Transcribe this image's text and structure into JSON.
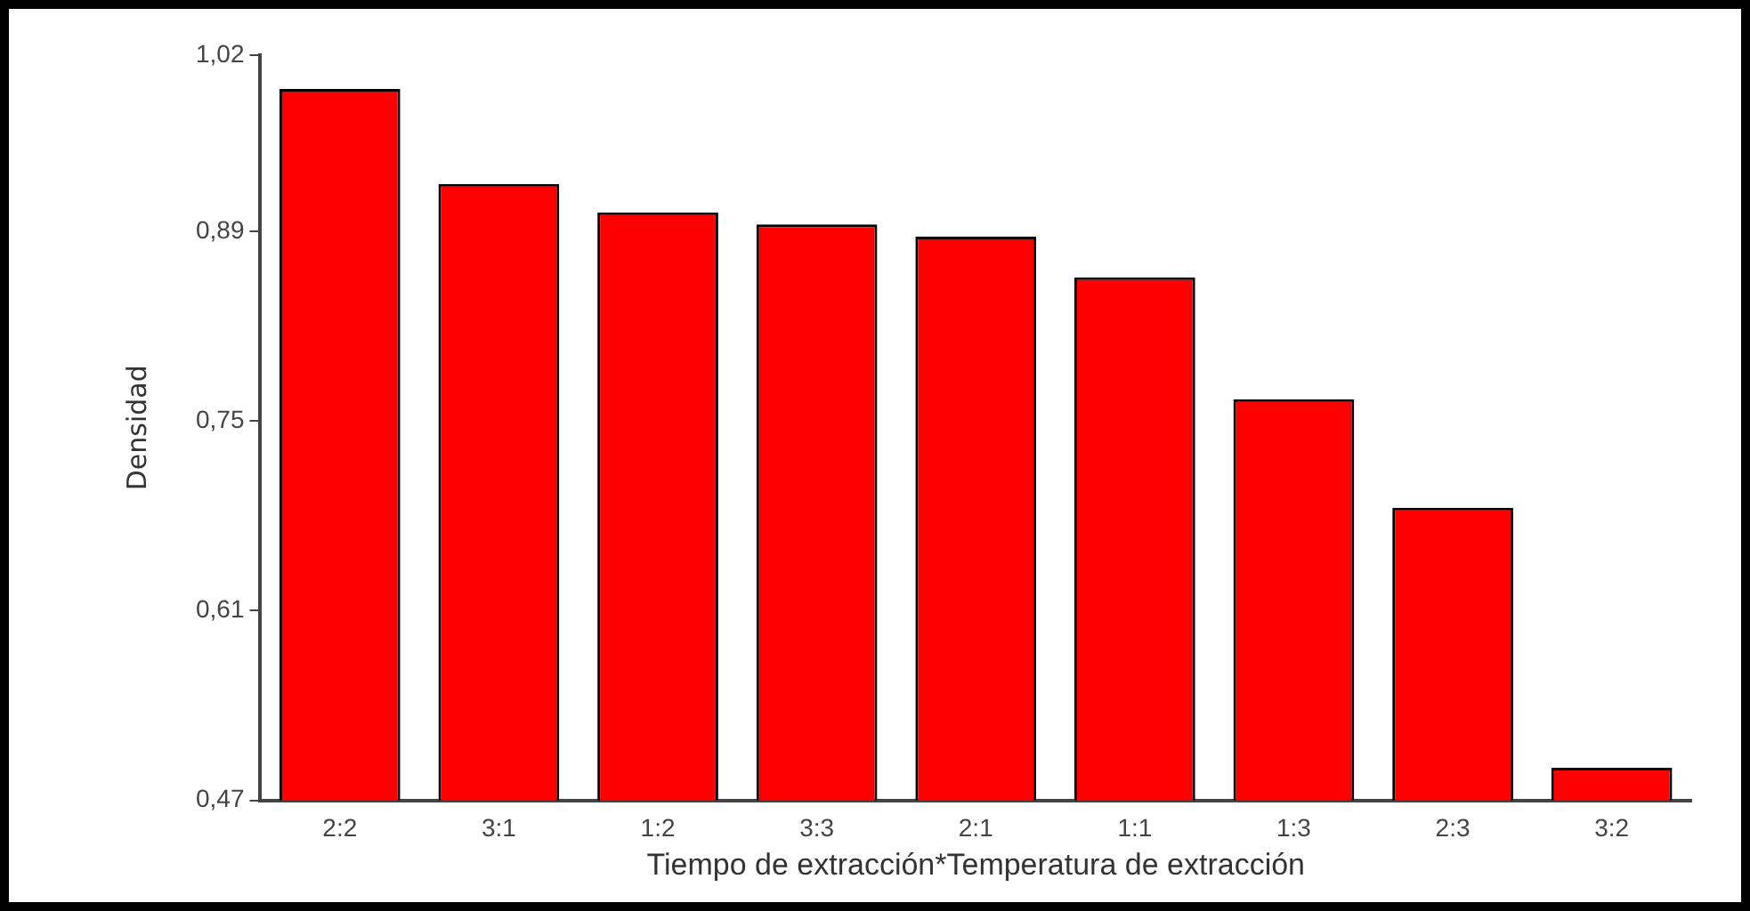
{
  "chart_data": {
    "type": "bar",
    "xlabel": "Tiempo de extracción*Temperatura de extracción",
    "ylabel": "Densidad",
    "categories": [
      "2:2",
      "3:1",
      "1:2",
      "3:3",
      "2:1",
      "1:1",
      "1:3",
      "2:3",
      "3:2"
    ],
    "values": [
      0.995,
      0.925,
      0.904,
      0.895,
      0.886,
      0.856,
      0.766,
      0.686,
      0.494
    ],
    "color": "#ff0000",
    "ylim": [
      0.47,
      1.02
    ],
    "yticks": [
      {
        "value": 0.47,
        "label": "0,47"
      },
      {
        "value": 0.61,
        "label": "0,61"
      },
      {
        "value": 0.75,
        "label": "0,75"
      },
      {
        "value": 0.89,
        "label": "0,89"
      },
      {
        "value": 1.02,
        "label": "1,02"
      }
    ],
    "grid": false,
    "legend": false
  }
}
